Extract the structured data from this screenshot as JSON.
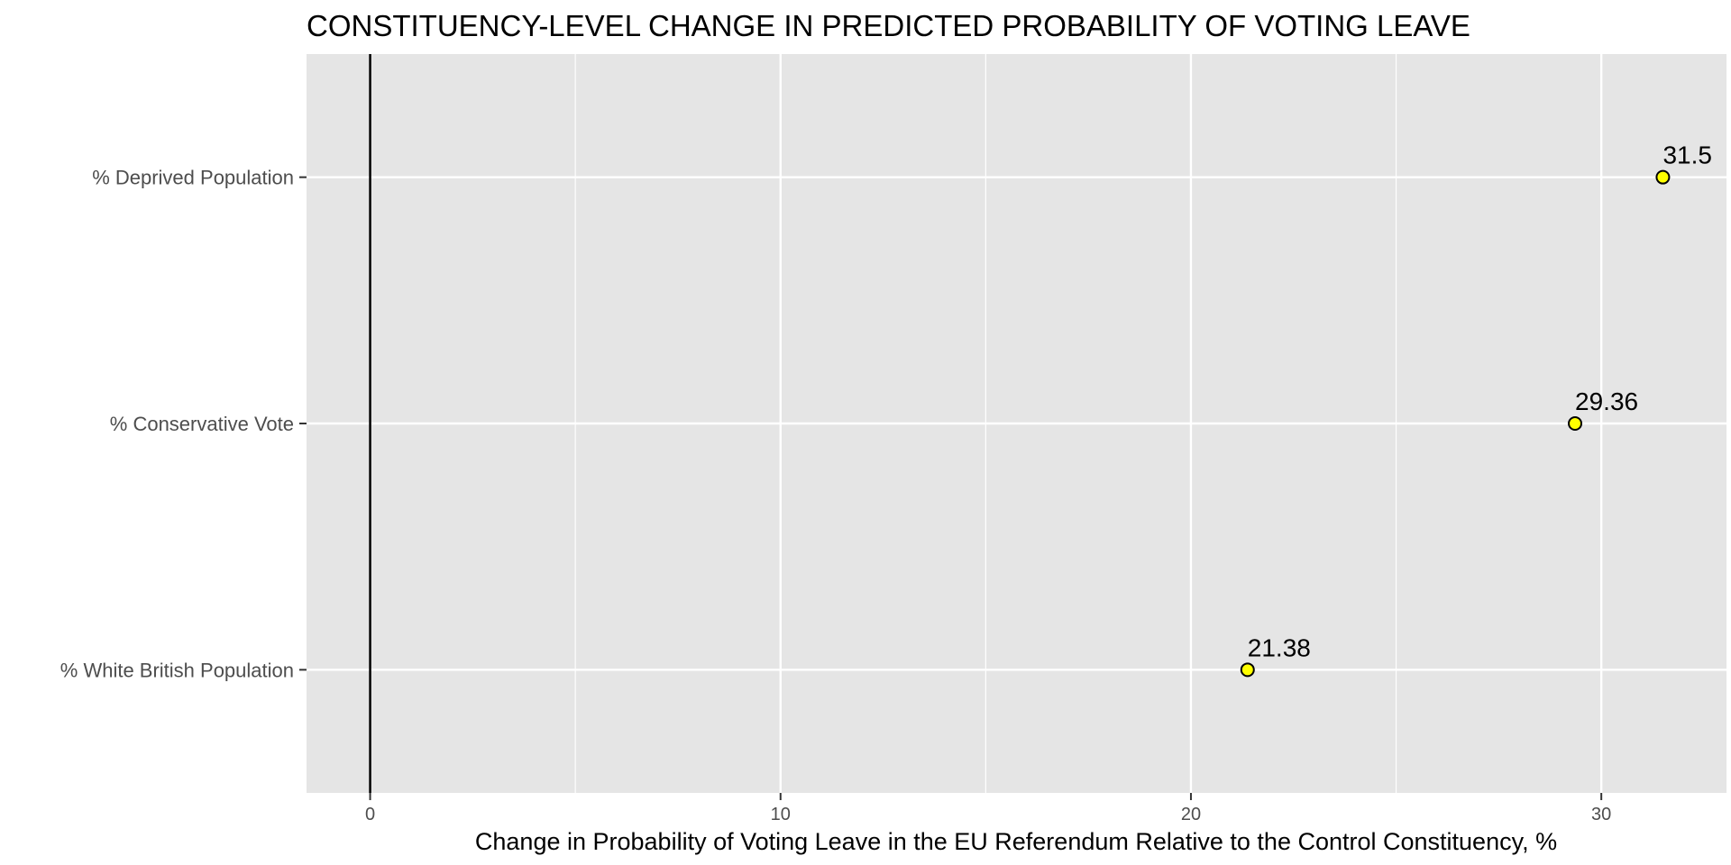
{
  "chart_data": {
    "type": "scatter",
    "title": "CONSTITUENCY-LEVEL CHANGE IN PREDICTED PROBABILITY OF VOTING LEAVE",
    "xlabel": "Change in Probability of Voting Leave in the EU Referendum Relative to the Control Constituency, %",
    "ylabel": "",
    "categories": [
      "% Deprived Population",
      "% Conservative Vote",
      "% White British Population"
    ],
    "values": [
      31.5,
      29.36,
      21.38
    ],
    "data_labels": [
      "31.5",
      "29.36",
      "21.38"
    ],
    "xlim": [
      -1.55,
      33.05
    ],
    "xticks": [
      0,
      10,
      20,
      30
    ],
    "xtick_labels": [
      "0",
      "10",
      "20",
      "30"
    ],
    "reference_line_x": 0,
    "grid": true,
    "legend": "none",
    "colors": {
      "panel": "#e5e5e5",
      "grid": "#ffffff",
      "point_fill": "#ffff00",
      "point_stroke": "#000000",
      "reference_line": "#000000"
    }
  }
}
